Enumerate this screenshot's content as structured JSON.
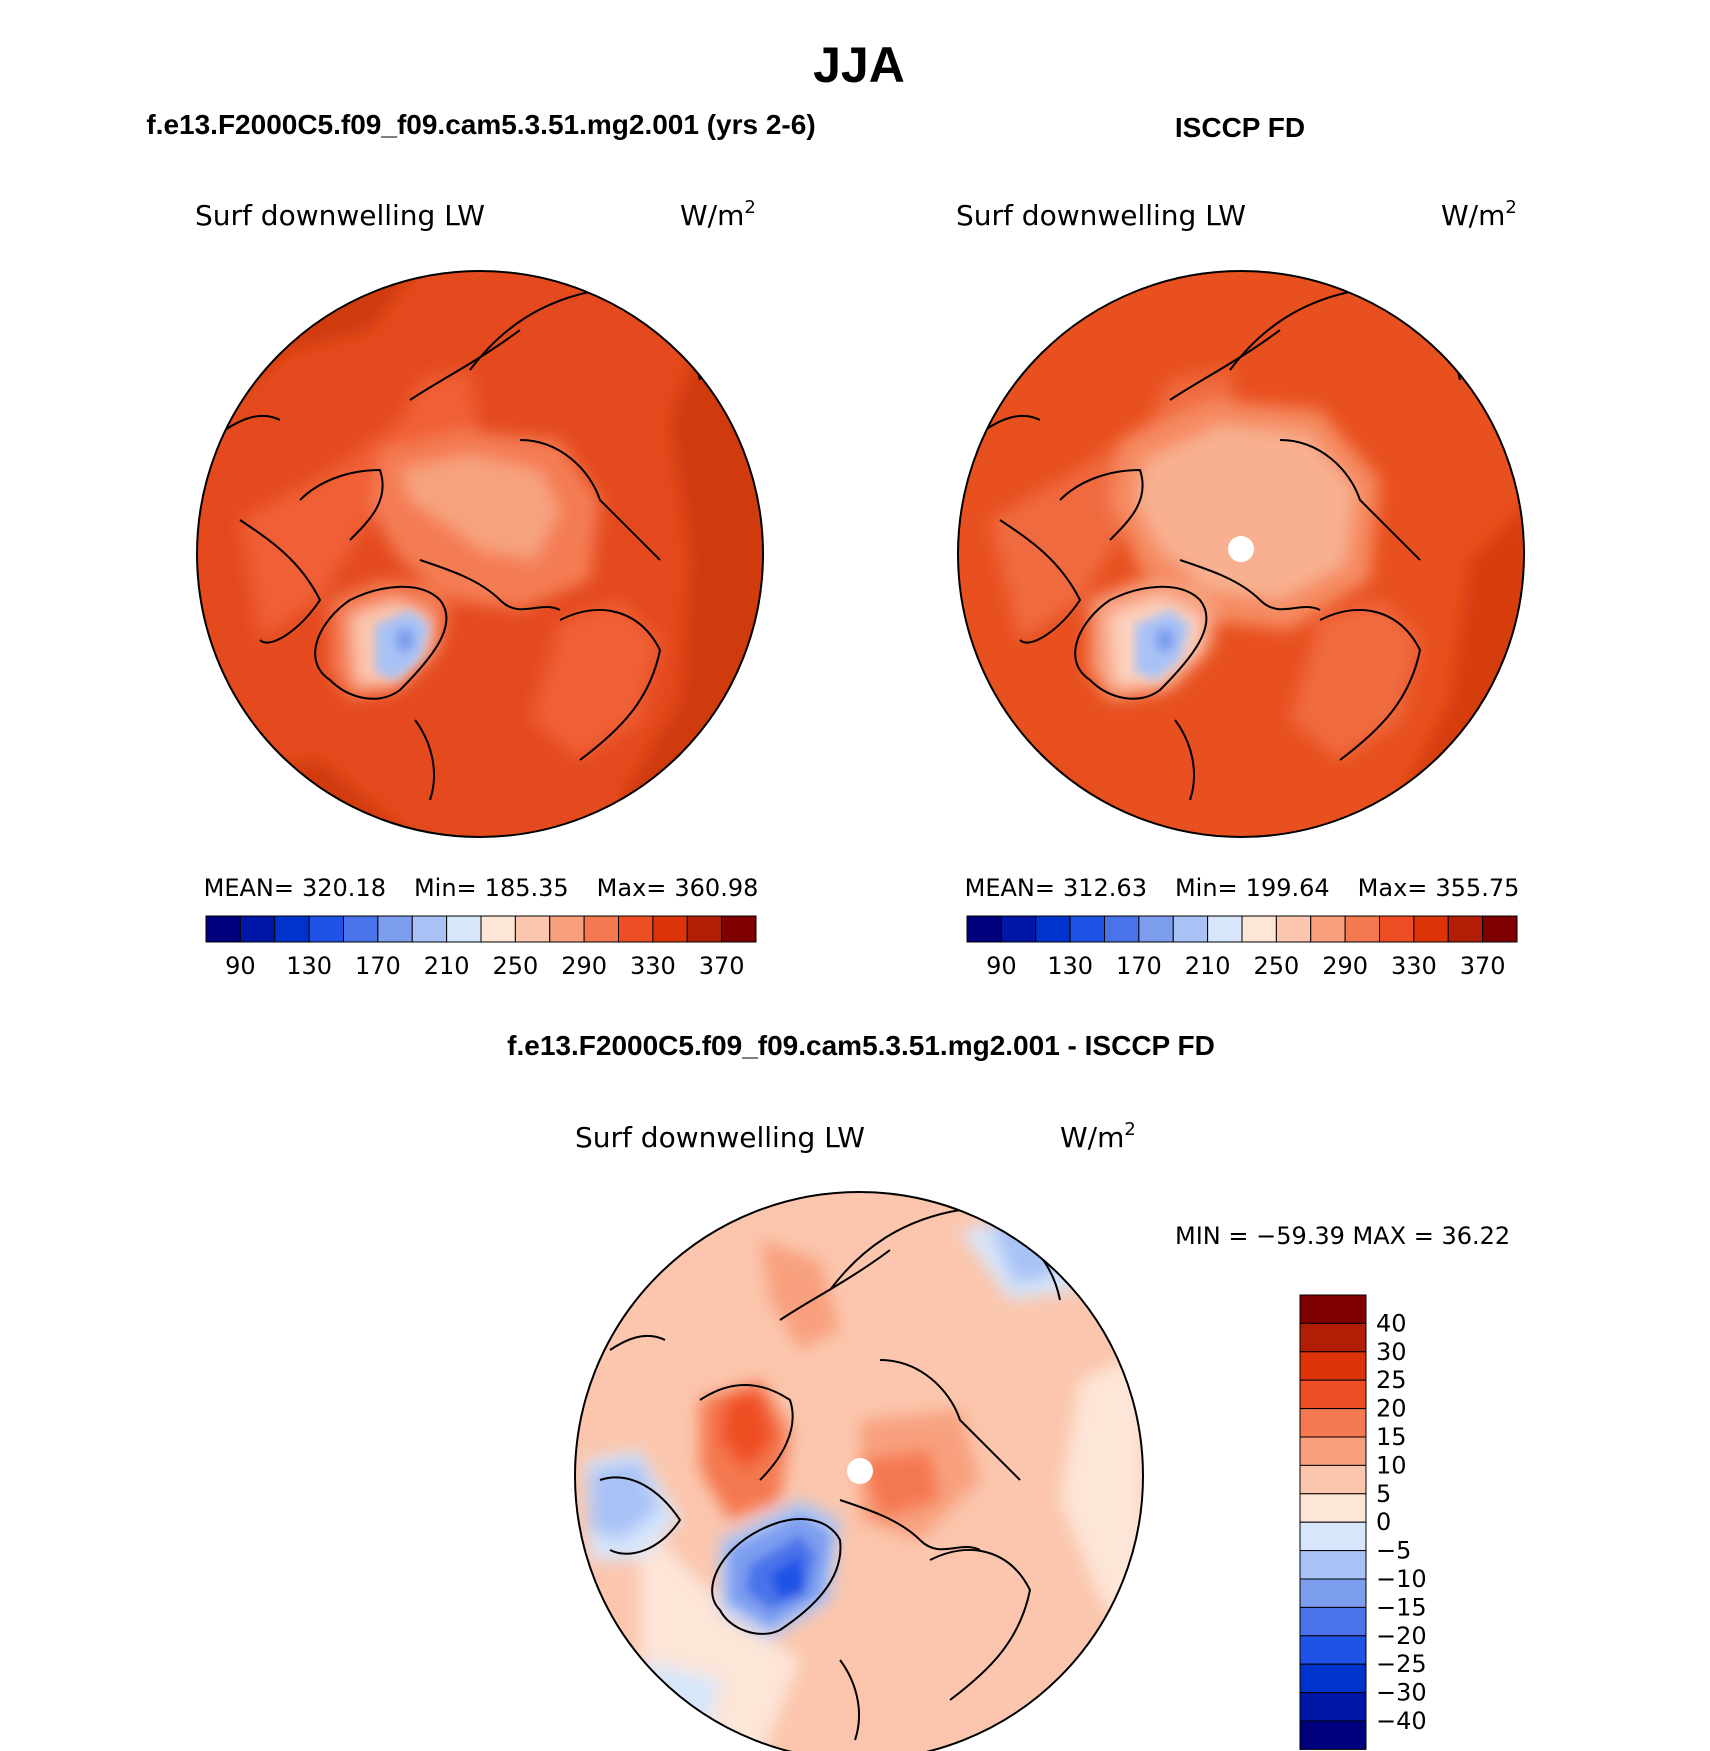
{
  "figure": {
    "season": "JJA",
    "diff_title": "f.e13.F2000C5.f09_f09.cam5.3.51.mg2.001 - ISCCP FD"
  },
  "panels": [
    {
      "id": "model",
      "title": "f.e13.F2000C5.f09_f09.cam5.3.51.mg2.001 (yrs 2-6)",
      "variable": "Surf downwelling LW",
      "units_base": "W/m",
      "units_exp": "2",
      "stats": {
        "mean_label": "MEAN=",
        "mean": "320.18",
        "min_label": "Min=",
        "min": "185.35",
        "max_label": "Max=",
        "max": "360.98"
      }
    },
    {
      "id": "obs",
      "title": "ISCCP FD",
      "variable": "Surf downwelling LW",
      "units_base": "W/m",
      "units_exp": "2",
      "stats": {
        "mean_label": "MEAN=",
        "mean": "312.63",
        "min_label": "Min=",
        "min": "199.64",
        "max_label": "Max=",
        "max": "355.75"
      }
    },
    {
      "id": "diff",
      "variable": "Surf downwelling LW",
      "units_base": "W/m",
      "units_exp": "2",
      "stats_text": "MIN = −59.39 MAX =   36.22"
    }
  ],
  "colorbar_abs": {
    "colors": [
      "#00007f",
      "#0016a8",
      "#0033cc",
      "#1f52e6",
      "#4a73ea",
      "#7d9def",
      "#a9c2f6",
      "#d7e6fb",
      "#fde5d7",
      "#fbc6ad",
      "#f8a07e",
      "#f47850",
      "#ef4d24",
      "#dc3308",
      "#b21d05",
      "#7f0000"
    ],
    "tick_labels": [
      "90",
      "130",
      "170",
      "210",
      "250",
      "290",
      "330",
      "370"
    ]
  },
  "colorbar_diff": {
    "colors": [
      "#00007f",
      "#0016a8",
      "#0033cc",
      "#1f52e6",
      "#4a73ea",
      "#7d9def",
      "#a9c2f6",
      "#d7e6fb",
      "#fde5d7",
      "#fbc6ad",
      "#f8a07e",
      "#f47850",
      "#ef4d24",
      "#dc3308",
      "#b21d05",
      "#7f0000"
    ],
    "tick_labels": [
      "40",
      "30",
      "25",
      "20",
      "15",
      "10",
      "5",
      "0",
      "−5",
      "−10",
      "−15",
      "−20",
      "−25",
      "−30",
      "−40"
    ]
  },
  "map_layers": {
    "model": {
      "ocean": "#e44a1e",
      "outer": "#d03a0c",
      "arctic": "#f6a37f",
      "arctic_edge": "#f47b52",
      "greenland": "#f47b52",
      "greenland_inner": "#fbc6ad",
      "greenland_ice": "#a9c2f6",
      "greenland_core": "#7d9def",
      "continent": "#f05e35"
    },
    "obs": {
      "ocean": "#e8501f",
      "outer": "#d53c0e",
      "arctic": "#f8b090",
      "arctic_edge": "#f58a60",
      "greenland": "#f8a07e",
      "greenland_inner": "#fbd3bf",
      "greenland_ice": "#a9c2f6",
      "greenland_core": "#7d9def",
      "continent": "#f06a40"
    },
    "diff": {
      "base": "#fbc6ad",
      "light": "#fde5d7",
      "mid": "#f8a07e",
      "warm": "#f47850",
      "strong": "#ef4d24",
      "cool_light": "#d7e6fb",
      "cool": "#a9c2f6",
      "cool_mid": "#7d9def",
      "cool_strong": "#4a73ea",
      "cool_deep": "#1f52e6"
    }
  }
}
